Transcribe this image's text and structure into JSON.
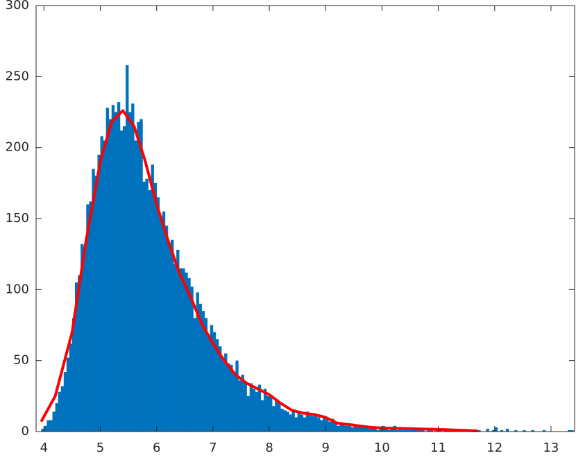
{
  "chart_data": {
    "type": "histogram",
    "bins": [
      3.95,
      4,
      4.05,
      4.1,
      4.15,
      4.2,
      4.25,
      4.3,
      4.35,
      4.4,
      4.45,
      4.5,
      4.55,
      4.6,
      4.65,
      4.7,
      4.75,
      4.8,
      4.85,
      4.9,
      4.95,
      5,
      5.05,
      5.1,
      5.15,
      5.2,
      5.25,
      5.3,
      5.35,
      5.4,
      5.45,
      5.5,
      5.55,
      5.6,
      5.65,
      5.7,
      5.75,
      5.8,
      5.85,
      5.9,
      5.95,
      6,
      6.05,
      6.1,
      6.15,
      6.2,
      6.25,
      6.3,
      6.35,
      6.4,
      6.45,
      6.5,
      6.55,
      6.6,
      6.65,
      6.7,
      6.75,
      6.8,
      6.85,
      6.9,
      6.95,
      7,
      7.05,
      7.1,
      7.15,
      7.2,
      7.25,
      7.3,
      7.35,
      7.4,
      7.45,
      7.5,
      7.55,
      7.6,
      7.65,
      7.7,
      7.75,
      7.8,
      7.85,
      7.9,
      7.95,
      8,
      8.05,
      8.1,
      8.15,
      8.2,
      8.25,
      8.3,
      8.35,
      8.4,
      8.45,
      8.5,
      8.55,
      8.6,
      8.65,
      8.7,
      8.75,
      8.8,
      8.85,
      8.9,
      8.95,
      9,
      9.05,
      9.1,
      9.15,
      9.2,
      9.25,
      9.3,
      9.35,
      9.4,
      9.45,
      9.5,
      9.55,
      9.6,
      9.65,
      9.7,
      9.75,
      9.8,
      9.85,
      9.9,
      9.95,
      10,
      10.05,
      10.1,
      10.15,
      10.2,
      10.25,
      10.3,
      10.35,
      10.4,
      10.45,
      10.5,
      10.55,
      10.6,
      10.65,
      10.7,
      10.75,
      10.8,
      10.85,
      10.9,
      10.95,
      11,
      11.05,
      11.1,
      11.15,
      11.2,
      11.25,
      11.3,
      11.35,
      11.4,
      11.45,
      11.5,
      11.55,
      11.6,
      11.65,
      11.7,
      11.75,
      11.8,
      11.85,
      11.9,
      11.95,
      12,
      12.05,
      12.1,
      12.15,
      12.2,
      12.25,
      12.3,
      12.35,
      12.4,
      12.45,
      12.5,
      12.55,
      12.6,
      12.65,
      12.7,
      12.75,
      12.8,
      12.85,
      12.9,
      12.95,
      13,
      13.05,
      13.1,
      13.15,
      13.2,
      13.25,
      13.3,
      13.35,
      13.4
    ],
    "values": [
      2,
      4,
      8,
      8,
      14,
      20,
      28,
      32,
      42,
      52,
      62,
      80,
      105,
      110,
      132,
      130,
      160,
      162,
      185,
      180,
      195,
      208,
      205,
      228,
      220,
      230,
      225,
      232,
      212,
      215,
      258,
      225,
      231,
      205,
      218,
      220,
      176,
      178,
      170,
      188,
      175,
      165,
      150,
      155,
      145,
      132,
      135,
      118,
      128,
      115,
      115,
      112,
      108,
      102,
      80,
      98,
      90,
      85,
      80,
      68,
      75,
      70,
      65,
      60,
      52,
      55,
      48,
      47,
      42,
      50,
      36,
      40,
      35,
      25,
      34,
      30,
      28,
      33,
      22,
      30,
      25,
      26,
      18,
      22,
      20,
      16,
      15,
      14,
      12,
      14,
      10,
      13,
      12,
      10,
      14,
      12,
      11,
      12,
      10,
      8,
      11,
      9,
      7,
      9,
      6,
      4,
      5,
      6,
      4,
      5,
      3,
      5,
      4,
      3,
      4,
      4,
      3,
      2,
      3,
      1,
      2,
      4,
      2,
      1,
      3,
      4,
      1,
      2,
      1,
      2,
      1,
      2,
      1,
      1,
      2,
      1,
      0,
      1,
      2,
      0,
      1,
      1,
      0,
      1,
      2,
      1,
      0,
      1,
      0,
      1,
      0,
      1,
      0,
      0,
      0,
      1,
      0,
      0,
      2,
      0,
      1,
      3,
      0,
      1,
      0,
      2,
      0,
      0,
      1,
      0,
      0,
      1,
      0,
      0,
      1,
      0,
      0,
      0,
      1,
      0,
      0,
      0,
      0,
      0,
      0,
      0,
      0,
      1,
      1
    ],
    "color": "#0072bd",
    "fit": {
      "color": "#ff0000",
      "x": [
        3.95,
        4.2,
        4.5,
        4.75,
        5.0,
        5.2,
        5.4,
        5.6,
        5.8,
        6.0,
        6.2,
        6.4,
        6.6,
        6.8,
        7.0,
        7.2,
        7.4,
        7.6,
        7.8,
        8.0,
        8.2,
        8.4,
        8.6,
        8.8,
        9.0,
        9.2,
        9.4,
        9.6,
        9.8,
        10.0,
        10.5,
        11.0,
        11.7
      ],
      "values": [
        7,
        25,
        70,
        135,
        190,
        218,
        226,
        215,
        190,
        160,
        135,
        112,
        95,
        76,
        62,
        50,
        40,
        34,
        30,
        26,
        20,
        15,
        13,
        12,
        10,
        6,
        5,
        4,
        3,
        2.5,
        2,
        1.5,
        0.5
      ]
    },
    "xlim": [
      3.86,
      13.42
    ],
    "xticks": [
      4,
      5,
      6,
      7,
      8,
      9,
      10,
      11,
      12,
      13
    ],
    "ylim": [
      0,
      300
    ],
    "yticks": [
      0,
      50,
      100,
      150,
      200,
      250,
      300
    ],
    "grid": false
  }
}
